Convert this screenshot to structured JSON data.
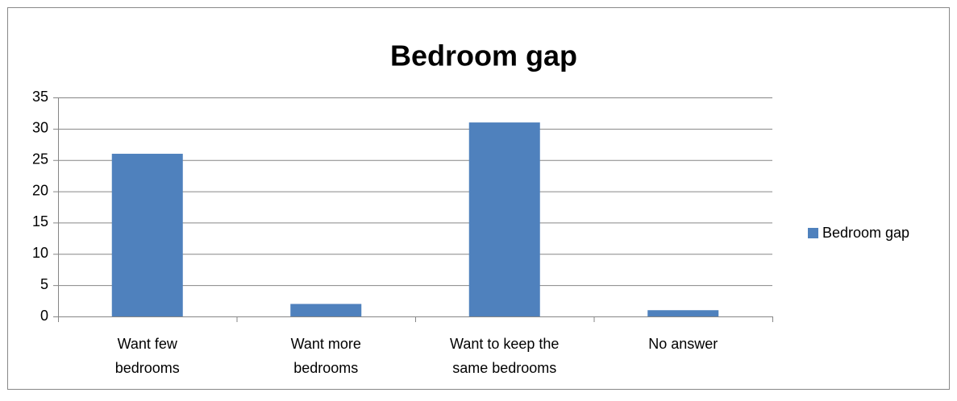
{
  "chart_data": {
    "type": "bar",
    "title": "Bedroom gap",
    "categories": [
      "Want few bedrooms",
      "Want more bedrooms",
      "Want to keep the same bedrooms",
      "No answer"
    ],
    "series": [
      {
        "name": "Bedroom gap",
        "color": "#4f81bd",
        "values": [
          26,
          2,
          31,
          1
        ]
      }
    ],
    "ylim": [
      0,
      35
    ],
    "yticks": [
      0,
      5,
      10,
      15,
      20,
      25,
      30,
      35
    ],
    "grid": true,
    "legend": "right"
  }
}
